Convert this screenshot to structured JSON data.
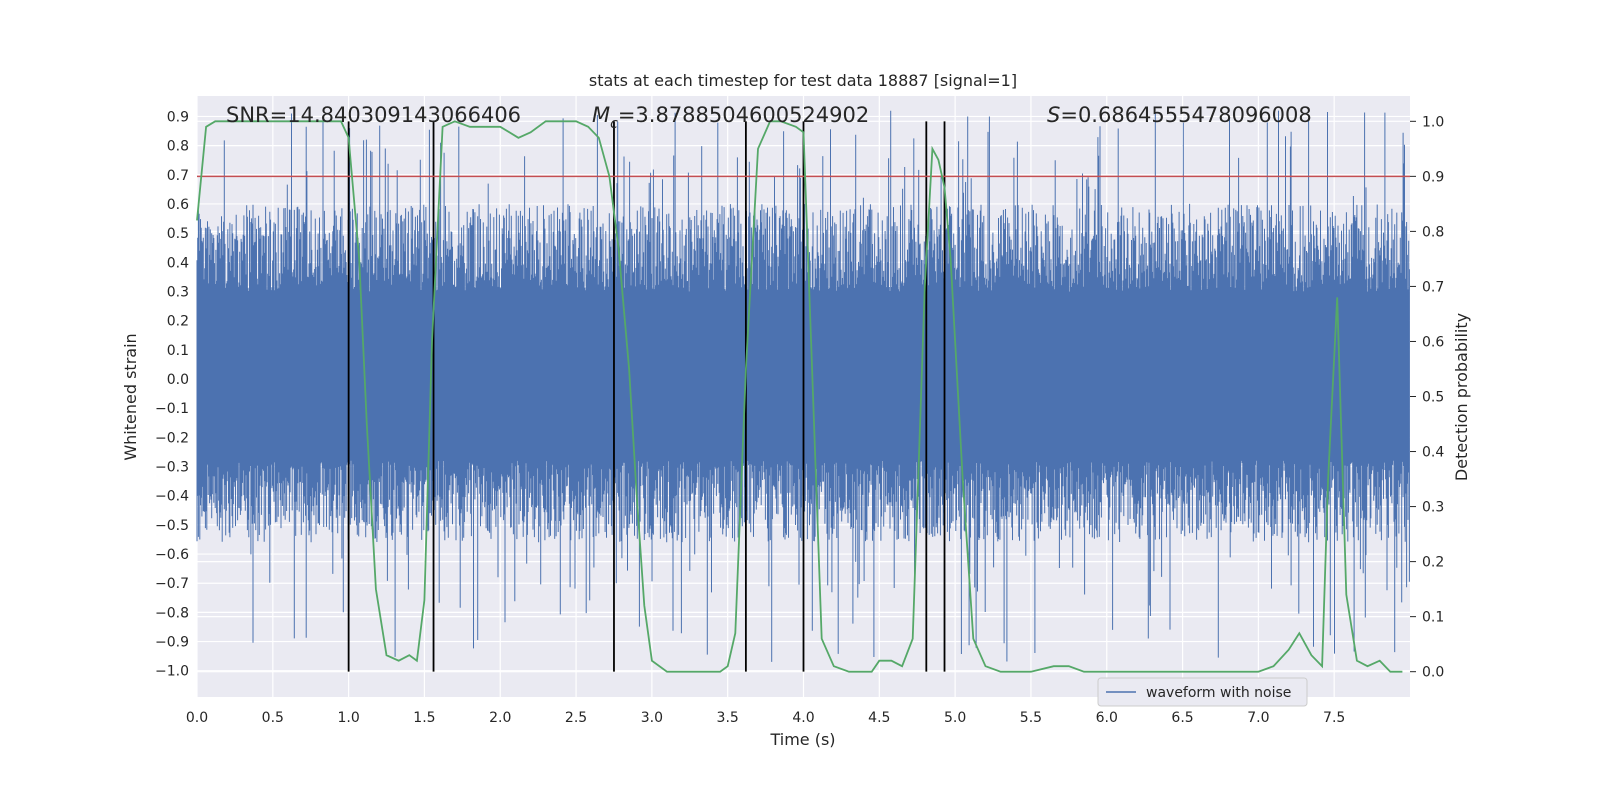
{
  "chart_data": {
    "type": "line",
    "title": "stats at each timestep for test data 18887 [signal=1]",
    "xlabel": "Time (s)",
    "ylabel": "Whitened strain",
    "y2label": "Detection probability",
    "xlim": [
      0.0,
      8.0
    ],
    "ylim": [
      -1.09,
      0.97
    ],
    "y2lim": [
      -0.046,
      1.046
    ],
    "x_ticks": [
      "0.0",
      "0.5",
      "1.0",
      "1.5",
      "2.0",
      "2.5",
      "3.0",
      "3.5",
      "4.0",
      "4.5",
      "5.0",
      "5.5",
      "6.0",
      "6.5",
      "7.0",
      "7.5"
    ],
    "y_ticks": [
      "0.9",
      "0.8",
      "0.7",
      "0.6",
      "0.5",
      "0.4",
      "0.3",
      "0.2",
      "0.1",
      "0.0",
      "−0.1",
      "−0.2",
      "−0.3",
      "−0.4",
      "−0.5",
      "−0.6",
      "−0.7",
      "−0.8",
      "−0.9",
      "−1.0"
    ],
    "y2_ticks": [
      "1.0",
      "0.9",
      "0.8",
      "0.7",
      "0.6",
      "0.5",
      "0.4",
      "0.3",
      "0.2",
      "0.1",
      "0.0"
    ],
    "grid": true,
    "legend_position": "lower-right",
    "annotations": {
      "snr": "SNR=14.840309143066406",
      "mc_symbol": "M",
      "mc_sub": "c",
      "mc_value": "=3.8788504600524902",
      "s_symbol": "S",
      "s_value": "=0.6864555478096008"
    },
    "series": [
      {
        "name": "waveform with noise",
        "color": "#4c72b0",
        "kind": "whitened strain (dense noise, envelope approx. -0.6 to 0.65, spikes to ~0.9 and ~-1.0)"
      },
      {
        "color": "#55a868",
        "axis": "right",
        "x": [
          0.0,
          0.06,
          0.12,
          0.2,
          0.5,
          0.8,
          0.95,
          1.0,
          1.07,
          1.12,
          1.18,
          1.25,
          1.33,
          1.4,
          1.45,
          1.5,
          1.55,
          1.62,
          1.7,
          1.8,
          2.0,
          2.12,
          2.2,
          2.3,
          2.4,
          2.5,
          2.58,
          2.65,
          2.72,
          2.78,
          2.85,
          2.9,
          2.95,
          3.0,
          3.1,
          3.3,
          3.45,
          3.5,
          3.55,
          3.62,
          3.7,
          3.78,
          3.85,
          3.95,
          4.0,
          4.05,
          4.12,
          4.2,
          4.3,
          4.45,
          4.5,
          4.58,
          4.65,
          4.72,
          4.8,
          4.85,
          4.89,
          4.93,
          4.97,
          5.05,
          5.12,
          5.2,
          5.3,
          5.5,
          5.65,
          5.75,
          5.85,
          6.0,
          6.5,
          7.0,
          7.1,
          7.2,
          7.27,
          7.35,
          7.42,
          7.46,
          7.52,
          7.58,
          7.65,
          7.72,
          7.8,
          7.87,
          7.95
        ],
        "values": [
          0.82,
          0.99,
          1.0,
          1.0,
          1.0,
          1.0,
          1.0,
          0.97,
          0.75,
          0.45,
          0.15,
          0.03,
          0.02,
          0.03,
          0.02,
          0.13,
          0.6,
          0.99,
          1.0,
          0.99,
          0.99,
          0.97,
          0.98,
          1.0,
          1.0,
          1.0,
          0.99,
          0.97,
          0.9,
          0.77,
          0.55,
          0.32,
          0.12,
          0.02,
          0.0,
          0.0,
          0.0,
          0.01,
          0.07,
          0.55,
          0.95,
          1.0,
          1.0,
          0.99,
          0.98,
          0.6,
          0.06,
          0.01,
          0.0,
          0.0,
          0.02,
          0.02,
          0.01,
          0.06,
          0.7,
          0.95,
          0.93,
          0.88,
          0.75,
          0.35,
          0.06,
          0.01,
          0.0,
          0.0,
          0.01,
          0.01,
          0.0,
          0.0,
          0.0,
          0.0,
          0.01,
          0.04,
          0.07,
          0.03,
          0.01,
          0.35,
          0.68,
          0.14,
          0.02,
          0.01,
          0.02,
          0.0,
          0.0
        ]
      }
    ],
    "threshold": {
      "color": "#c44e52",
      "axis": "right",
      "value": 0.9
    },
    "event_markers": {
      "color": "#000000",
      "x": [
        1.0,
        1.56,
        2.75,
        3.62,
        4.0,
        4.81,
        4.93
      ]
    }
  }
}
